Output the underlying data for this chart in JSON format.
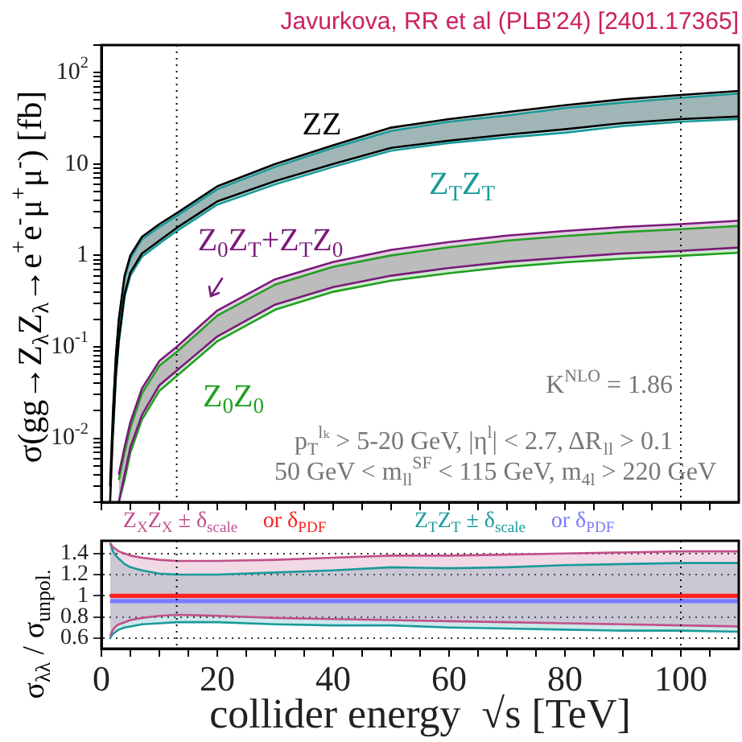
{
  "chart_data": [
    {
      "type": "line",
      "title": "Javurkova, RR et al (PLB'24) [2401.17365]",
      "ylabel": "σ(gg→Z$_{λ}$Z$_{λ}$→e$^{+}$e$^{-}$μ$^{+}$μ$^{-}$) [fb]",
      "x": [
        1.5,
        2,
        2.5,
        3,
        4,
        5,
        7,
        10,
        13,
        20,
        30,
        40,
        50,
        60,
        70,
        80,
        90,
        100,
        110
      ],
      "series": [
        {
          "name": "ZZ",
          "color": "#000000",
          "values": [
            0.003,
            0.02,
            0.08,
            0.2,
            0.6,
            1.0,
            1.6,
            2.2,
            2.9,
            5.7,
            10,
            16,
            25,
            31,
            37,
            44,
            51,
            57,
            63
          ],
          "upper": [
            0.003,
            0.02,
            0.08,
            0.2,
            0.6,
            1.0,
            1.6,
            2.2,
            2.9,
            5.7,
            10,
            16,
            25,
            31,
            37,
            44,
            51,
            57,
            63
          ],
          "lower": [
            0.002,
            0.012,
            0.05,
            0.12,
            0.38,
            0.65,
            1.05,
            1.45,
            2.0,
            3.9,
            6.5,
            10,
            15,
            18,
            21,
            24,
            28,
            31,
            33
          ]
        },
        {
          "color": "#000000",
          "values": [
            0.002,
            0.012,
            0.05,
            0.12,
            0.38,
            0.65,
            1.05,
            1.45,
            2.0,
            3.9,
            6.5,
            10,
            15,
            18,
            21,
            24,
            28,
            31,
            33
          ]
        },
        {
          "name": "Z$_{T}$Z$_{T}$",
          "color": "#1a9a9a",
          "values": [
            null,
            0.018,
            0.074,
            0.185,
            0.56,
            0.93,
            1.5,
            2.05,
            2.7,
            5.3,
            9.3,
            15,
            23,
            29,
            34,
            41,
            47,
            53,
            59
          ],
          "upper": [
            null,
            0.018,
            0.074,
            0.185,
            0.56,
            0.93,
            1.5,
            2.05,
            2.7,
            5.3,
            9.3,
            15,
            23,
            29,
            34,
            41,
            47,
            53,
            59
          ],
          "lower": [
            null,
            0.011,
            0.046,
            0.11,
            0.35,
            0.6,
            0.97,
            1.35,
            1.85,
            3.6,
            6.0,
            9.3,
            14,
            17,
            19.5,
            22,
            26,
            29,
            31
          ]
        },
        {
          "color": "#1a9a9a",
          "values": [
            null,
            0.011,
            0.046,
            0.11,
            0.35,
            0.6,
            0.97,
            1.35,
            1.85,
            3.6,
            6.0,
            9.3,
            14,
            17,
            19.5,
            22,
            26,
            29,
            31
          ]
        },
        {
          "name": "Z$_{0}$Z$_{T}$+Z$_{T}$Z$_{0}$",
          "color": "#7b1a7b",
          "values": [
            null,
            null,
            null,
            0.004,
            0.008,
            0.015,
            0.035,
            0.07,
            0.1,
            0.25,
            0.55,
            0.85,
            1.15,
            1.4,
            1.65,
            1.85,
            2.05,
            2.2,
            2.4
          ],
          "upper": [
            null,
            null,
            null,
            0.004,
            0.008,
            0.015,
            0.035,
            0.07,
            0.1,
            0.25,
            0.55,
            0.85,
            1.15,
            1.4,
            1.65,
            1.85,
            2.05,
            2.2,
            2.4
          ],
          "lower": [
            null,
            null,
            null,
            0.002,
            0.004,
            0.008,
            0.018,
            0.038,
            0.055,
            0.13,
            0.29,
            0.45,
            0.6,
            0.73,
            0.85,
            0.95,
            1.05,
            1.12,
            1.22
          ]
        },
        {
          "color": "#7b1a7b",
          "values": [
            null,
            null,
            null,
            0.002,
            0.004,
            0.008,
            0.018,
            0.038,
            0.055,
            0.13,
            0.29,
            0.45,
            0.6,
            0.73,
            0.85,
            0.95,
            1.05,
            1.12,
            1.22
          ]
        },
        {
          "name": "Z$_{0}$Z$_{0}$",
          "color": "#22a022",
          "values": [
            null,
            null,
            null,
            0.0035,
            0.007,
            0.013,
            0.031,
            0.062,
            0.088,
            0.22,
            0.48,
            0.75,
            1.0,
            1.23,
            1.45,
            1.63,
            1.8,
            1.94,
            2.1
          ],
          "upper": [
            null,
            null,
            null,
            0.0035,
            0.007,
            0.013,
            0.031,
            0.062,
            0.088,
            0.22,
            0.48,
            0.75,
            1.0,
            1.23,
            1.45,
            1.63,
            1.8,
            1.94,
            2.1
          ],
          "lower": [
            null,
            null,
            null,
            0.002,
            0.0035,
            0.007,
            0.016,
            0.033,
            0.048,
            0.115,
            0.255,
            0.4,
            0.53,
            0.64,
            0.75,
            0.84,
            0.92,
            0.99,
            1.07
          ]
        },
        {
          "color": "#22a022",
          "values": [
            null,
            null,
            null,
            0.002,
            0.0035,
            0.007,
            0.016,
            0.033,
            0.048,
            0.115,
            0.255,
            0.4,
            0.53,
            0.64,
            0.75,
            0.84,
            0.92,
            0.99,
            1.07
          ]
        }
      ],
      "log": "y",
      "xlim": [
        0,
        110
      ],
      "ylim": [
        0.002,
        200
      ],
      "xticks": [
        0,
        {
          "value": 5,
          "label": null
        },
        {
          "value": 10,
          "label": null
        },
        {
          "value": 15,
          "label": null
        },
        20,
        {
          "value": 25,
          "label": null
        },
        {
          "value": 30,
          "label": null
        },
        {
          "value": 35,
          "label": null
        },
        40,
        {
          "value": 45,
          "label": null
        },
        {
          "value": 50,
          "label": null
        },
        {
          "value": 55,
          "label": null
        },
        60,
        {
          "value": 65,
          "label": null
        },
        {
          "value": 70,
          "label": null
        },
        {
          "value": 75,
          "label": null
        },
        80,
        {
          "value": 85,
          "label": null
        },
        {
          "value": 90,
          "label": null
        },
        {
          "value": 95,
          "label": null
        },
        100,
        {
          "value": 105,
          "label": null
        }
      ],
      "yticks": [
        {
          "value": 0.002,
          "label": null
        },
        {
          "value": 0.003,
          "label": null
        },
        {
          "value": 0.004,
          "label": null
        },
        {
          "value": 0.005,
          "label": null
        },
        {
          "value": 0.006,
          "label": null
        },
        {
          "value": 0.007,
          "label": null
        },
        {
          "value": 0.008,
          "label": null
        },
        {
          "value": 0.009,
          "label": null
        },
        {
          "value": 0.01,
          "label": "10$^{-2}$"
        },
        {
          "value": 0.02,
          "label": null
        },
        {
          "value": 0.03,
          "label": null
        },
        {
          "value": 0.04,
          "label": null
        },
        {
          "value": 0.05,
          "label": null
        },
        {
          "value": 0.06,
          "label": null
        },
        {
          "value": 0.07,
          "label": null
        },
        {
          "value": 0.08,
          "label": null
        },
        {
          "value": 0.09,
          "label": null
        },
        {
          "value": 0.1,
          "label": "10$^{-1}$"
        },
        {
          "value": 0.2,
          "label": null
        },
        {
          "value": 0.3,
          "label": null
        },
        {
          "value": 0.4,
          "label": null
        },
        {
          "value": 0.5,
          "label": null
        },
        {
          "value": 0.6,
          "label": null
        },
        {
          "value": 0.7,
          "label": null
        },
        {
          "value": 0.8,
          "label": null
        },
        {
          "value": 0.9,
          "label": null
        },
        1,
        {
          "value": 2,
          "label": null
        },
        {
          "value": 3,
          "label": null
        },
        {
          "value": 4,
          "label": null
        },
        {
          "value": 5,
          "label": null
        },
        {
          "value": 6,
          "label": null
        },
        {
          "value": 7,
          "label": null
        },
        {
          "value": 8,
          "label": null
        },
        {
          "value": 9,
          "label": null
        },
        10,
        {
          "value": 20,
          "label": null
        },
        {
          "value": 30,
          "label": null
        },
        {
          "value": 40,
          "label": null
        },
        {
          "value": 50,
          "label": null
        },
        {
          "value": 60,
          "label": null
        },
        {
          "value": 70,
          "label": null
        },
        {
          "value": 80,
          "label": null
        },
        {
          "value": 90,
          "label": null
        },
        {
          "value": 100,
          "label": "10$^{2}$"
        },
        {
          "value": 200,
          "label": null
        }
      ],
      "tick_labels": "y",
      "grid": false,
      "legend": false,
      "ref_lines": [
        {
          "axis": "x",
          "value": 13,
          "line_style": "dotted"
        },
        {
          "axis": "x",
          "value": 100,
          "line_style": "dotted"
        }
      ],
      "annotations": [
        "K$^{NLO}$ = 1.86",
        "p$_{T}$$^{lₖ}$ > 5-20 GeV, |η$^{l}$| < 2.7, ΔR$_{ll}$ > 0.1",
        "50 GeV < m$_{ll}$$^{SF}$ < 115 GeV, m$_{4l}$ > 220 GeV"
      ]
    },
    {
      "type": "line",
      "xlabel": "collider energy  √s [TeV]",
      "ylabel": "σ$_{λλ}$ / σ$_{unpol.}$",
      "x": [
        1.5,
        2,
        2.5,
        3,
        4,
        5,
        7,
        10,
        13,
        20,
        30,
        40,
        50,
        60,
        70,
        80,
        90,
        100,
        110
      ],
      "series": [
        {
          "name": "Z$_{X}$Z$_{X}$ ± δ$_{scale}$",
          "color": "#c0508a",
          "values": [
            1.5,
            1.46,
            1.44,
            1.42,
            1.4,
            1.38,
            1.36,
            1.34,
            1.33,
            1.33,
            1.34,
            1.36,
            1.38,
            1.38,
            1.39,
            1.4,
            1.41,
            1.42,
            1.42
          ],
          "upper": [
            1.5,
            1.46,
            1.44,
            1.42,
            1.4,
            1.38,
            1.36,
            1.34,
            1.33,
            1.33,
            1.34,
            1.36,
            1.38,
            1.38,
            1.39,
            1.4,
            1.41,
            1.42,
            1.42
          ],
          "lower": [
            0.62,
            0.68,
            0.71,
            0.73,
            0.75,
            0.77,
            0.79,
            0.81,
            0.82,
            0.81,
            0.79,
            0.78,
            0.77,
            0.76,
            0.75,
            0.74,
            0.73,
            0.72,
            0.71
          ]
        },
        {
          "color": "#c0508a",
          "values": [
            0.62,
            0.68,
            0.71,
            0.73,
            0.75,
            0.77,
            0.79,
            0.81,
            0.82,
            0.81,
            0.79,
            0.78,
            0.77,
            0.76,
            0.75,
            0.74,
            0.73,
            0.72,
            0.71
          ]
        },
        {
          "name": "Z$_{T}$Z$_{T}$ ± δ$_{scale}$",
          "color": "#1a9a9a",
          "values": [
            1.5,
            1.42,
            1.38,
            1.35,
            1.3,
            1.27,
            1.24,
            1.21,
            1.2,
            1.2,
            1.22,
            1.24,
            1.27,
            1.26,
            1.27,
            1.29,
            1.3,
            1.31,
            1.31
          ],
          "upper": [
            1.5,
            1.42,
            1.38,
            1.35,
            1.3,
            1.27,
            1.24,
            1.21,
            1.2,
            1.2,
            1.22,
            1.24,
            1.27,
            1.26,
            1.27,
            1.29,
            1.3,
            1.31,
            1.31
          ],
          "lower": [
            0.6,
            0.64,
            0.66,
            0.68,
            0.7,
            0.71,
            0.73,
            0.74,
            0.75,
            0.75,
            0.73,
            0.72,
            0.72,
            0.7,
            0.69,
            0.68,
            0.67,
            0.67,
            0.66
          ]
        },
        {
          "color": "#1a9a9a",
          "values": [
            0.6,
            0.64,
            0.66,
            0.68,
            0.7,
            0.71,
            0.73,
            0.74,
            0.75,
            0.75,
            0.73,
            0.72,
            0.72,
            0.7,
            0.69,
            0.68,
            0.67,
            0.67,
            0.66
          ]
        },
        {
          "name": "or δ$_{PDF}$",
          "color": "#7a7aff",
          "values": [
            0.95,
            0.95,
            0.95,
            0.95,
            0.95,
            0.95,
            0.95,
            0.95,
            0.95,
            0.95,
            0.95,
            0.95,
            0.95,
            0.95,
            0.95,
            0.95,
            0.95,
            0.95,
            0.95
          ]
        },
        {
          "name": "or δ$_{PDF}$",
          "color": "#ff2020",
          "values": [
            1,
            1,
            1,
            1,
            1,
            1,
            1,
            1,
            1,
            1,
            1,
            1,
            1,
            1,
            1,
            1,
            1,
            1,
            1
          ]
        }
      ],
      "xlim": [
        0,
        110
      ],
      "ylim": [
        0.5,
        1.52
      ],
      "xticks": [
        0,
        {
          "value": 5,
          "label": null
        },
        {
          "value": 10,
          "label": null
        },
        {
          "value": 15,
          "label": null
        },
        20,
        {
          "value": 25,
          "label": null
        },
        {
          "value": 30,
          "label": null
        },
        {
          "value": 35,
          "label": null
        },
        40,
        {
          "value": 45,
          "label": null
        },
        {
          "value": 50,
          "label": null
        },
        {
          "value": 55,
          "label": null
        },
        60,
        {
          "value": 65,
          "label": null
        },
        {
          "value": 70,
          "label": null
        },
        {
          "value": 75,
          "label": null
        },
        80,
        {
          "value": 85,
          "label": null
        },
        {
          "value": 90,
          "label": null
        },
        {
          "value": 95,
          "label": null
        },
        100,
        {
          "value": 105,
          "label": null
        }
      ],
      "yticks": [
        0.6,
        0.8,
        1,
        1.2,
        1.4
      ],
      "grid": "y",
      "legend": false,
      "ref_lines": [
        {
          "axis": "x",
          "value": 13,
          "line_style": "dotted"
        },
        {
          "axis": "x",
          "value": 100,
          "line_style": "dotted"
        }
      ]
    }
  ]
}
